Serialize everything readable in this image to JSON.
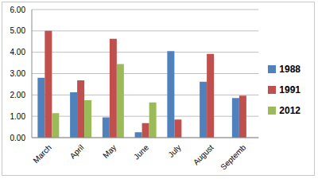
{
  "chart_data": {
    "type": "bar",
    "categories": [
      "March",
      "April",
      "May",
      "June",
      "July",
      "August",
      "Septemb"
    ],
    "series": [
      {
        "name": "1988",
        "color": "#4f81bd",
        "values": [
          2.8,
          2.12,
          0.95,
          0.25,
          4.05,
          2.62,
          1.85
        ]
      },
      {
        "name": "1991",
        "color": "#c0504d",
        "values": [
          5.0,
          2.68,
          4.63,
          0.68,
          0.85,
          3.92,
          1.97
        ]
      },
      {
        "name": "2012",
        "color": "#9bbb59",
        "values": [
          1.15,
          1.75,
          3.45,
          1.65,
          null,
          null,
          null
        ]
      }
    ],
    "ylim": [
      0,
      6
    ],
    "yticks": [
      {
        "value": 0,
        "label": "0.00"
      },
      {
        "value": 1,
        "label": "1.00"
      },
      {
        "value": 2,
        "label": "2.00"
      },
      {
        "value": 3,
        "label": "3.00"
      },
      {
        "value": 4,
        "label": "4.00"
      },
      {
        "value": 5,
        "label": "5.00"
      },
      {
        "value": 6,
        "label": "6.00"
      }
    ],
    "grid": true,
    "legend": "right"
  }
}
